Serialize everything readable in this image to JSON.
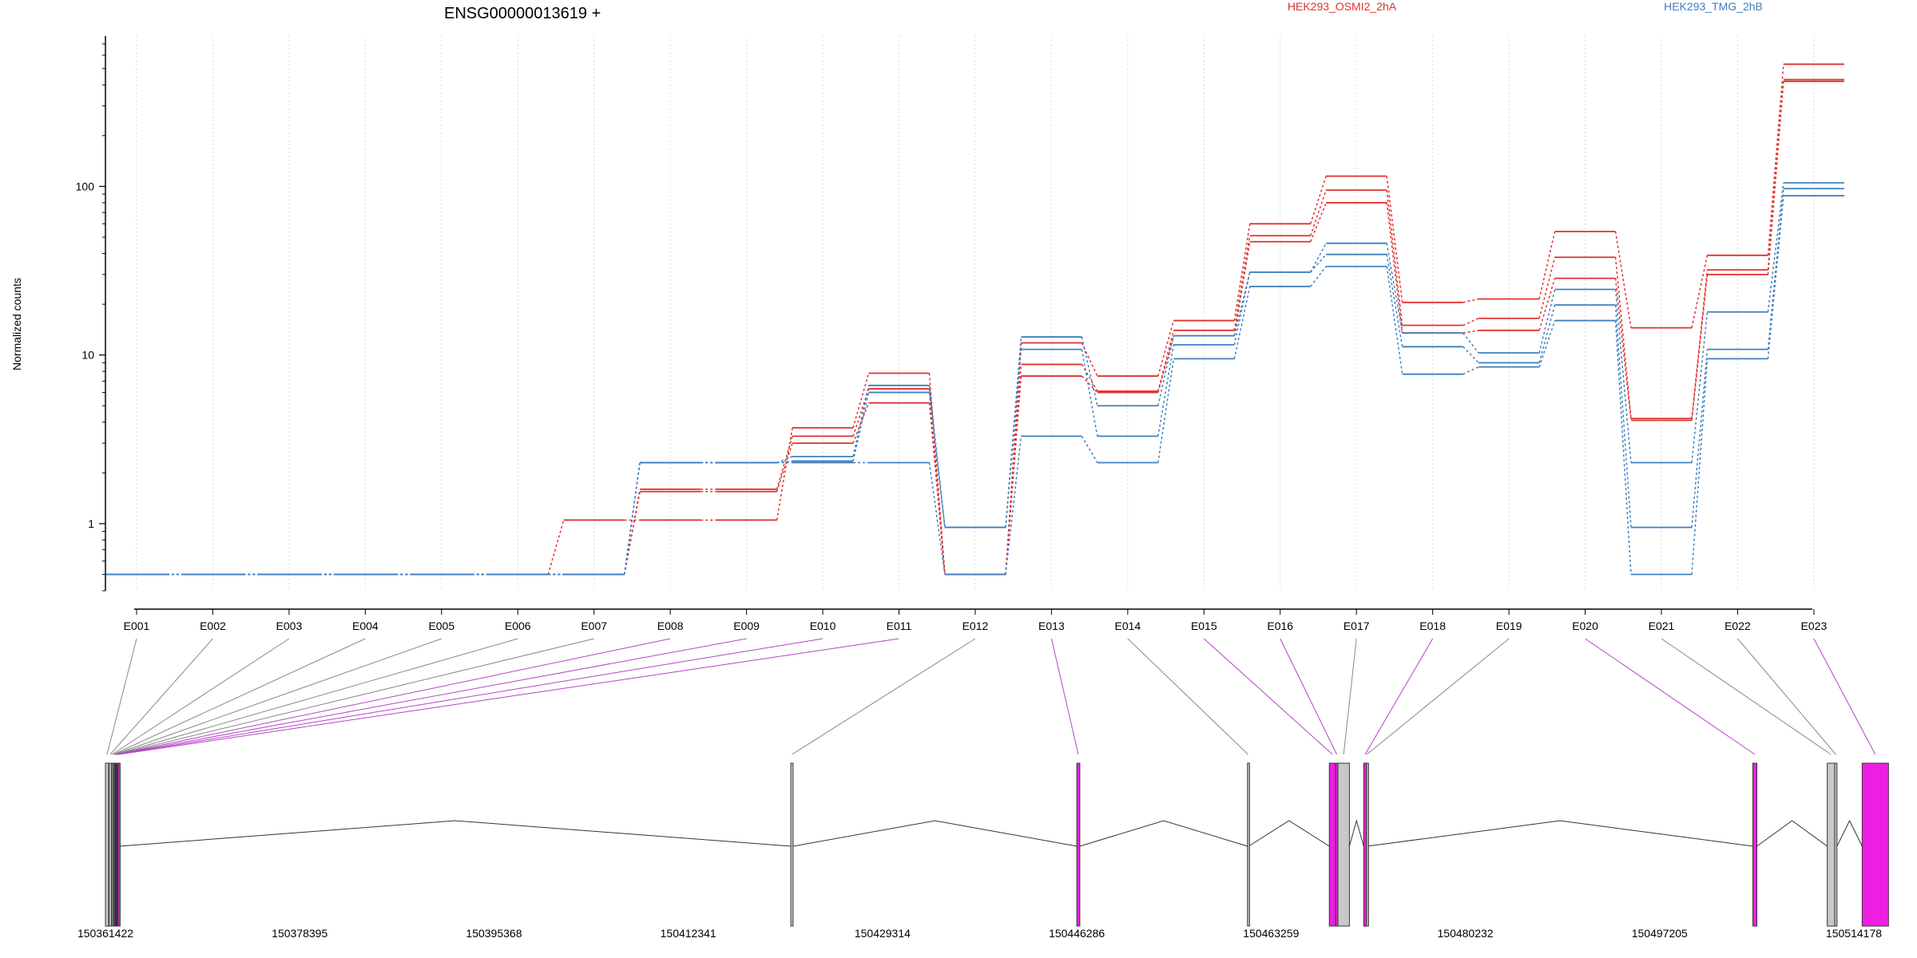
{
  "chart_data": {
    "type": "line",
    "title": "ENSG00000013619 +",
    "ylabel": "Normalized counts",
    "xlabel": "",
    "y_scale": "log",
    "ylim": [
      0.4,
      780
    ],
    "y_ticks": [
      1,
      10,
      100
    ],
    "y_tick_labels": [
      "1",
      "10",
      "100"
    ],
    "grid": "vertical dotted at each exon",
    "legend_placement": "top",
    "exons": [
      "E001",
      "E002",
      "E003",
      "E004",
      "E005",
      "E006",
      "E007",
      "E008",
      "E009",
      "E010",
      "E011",
      "E012",
      "E013",
      "E014",
      "E015",
      "E016",
      "E017",
      "E018",
      "E019",
      "E020",
      "E021",
      "E022",
      "E023"
    ],
    "series": [
      {
        "name": "HEK293_OSMI2_2hA",
        "color": "#e0312e",
        "values": [
          0.5,
          0.5,
          0.5,
          0.5,
          0.5,
          0.5,
          1.05,
          1.05,
          1.05,
          3.7,
          7.8,
          0.5,
          11.8,
          7.5,
          16,
          60,
          115,
          20.5,
          21.5,
          54,
          14.5,
          39,
          530
        ]
      },
      {
        "color": "#e0312e",
        "values": [
          0.5,
          0.5,
          0.5,
          0.5,
          0.5,
          0.5,
          0.5,
          1.6,
          1.6,
          3.3,
          6.3,
          0.5,
          8.8,
          6.1,
          14,
          51,
          95,
          15,
          16.5,
          38,
          4.2,
          32,
          430
        ]
      },
      {
        "color": "#e0312e",
        "values": [
          0.5,
          0.5,
          0.5,
          0.5,
          0.5,
          0.5,
          0.5,
          1.55,
          1.55,
          3.0,
          5.2,
          0.5,
          7.5,
          6.0,
          13,
          47,
          80,
          13.5,
          14,
          28.5,
          4.1,
          30,
          420
        ]
      },
      {
        "name": "HEK293_TMG_2hB",
        "color": "#3f7fbe",
        "values": [
          0.5,
          0.5,
          0.5,
          0.5,
          0.5,
          0.5,
          0.5,
          2.3,
          2.3,
          2.5,
          6.6,
          0.95,
          12.8,
          5.0,
          13,
          31,
          46,
          13.5,
          10.3,
          24.5,
          2.3,
          18,
          105
        ]
      },
      {
        "color": "#3f7fbe",
        "values": [
          0.5,
          0.5,
          0.5,
          0.5,
          0.5,
          0.5,
          0.5,
          2.3,
          2.3,
          2.35,
          6.0,
          0.95,
          10.8,
          3.3,
          11.5,
          31,
          39.5,
          11.2,
          9.0,
          19.8,
          0.95,
          10.8,
          97
        ]
      },
      {
        "color": "#3f7fbe",
        "values": [
          0.5,
          0.5,
          0.5,
          0.5,
          0.5,
          0.5,
          0.5,
          2.3,
          2.3,
          2.3,
          2.3,
          0.5,
          3.3,
          2.3,
          9.5,
          25.5,
          33.5,
          7.7,
          8.5,
          16,
          0.5,
          9.5,
          88
        ]
      }
    ],
    "exon_highlight": [
      false,
      false,
      false,
      false,
      false,
      false,
      false,
      true,
      true,
      true,
      true,
      false,
      true,
      false,
      true,
      true,
      false,
      true,
      false,
      true,
      false,
      false,
      true
    ],
    "genome_ticks": [
      "150361422",
      "150378395",
      "150395368",
      "150412341",
      "150429314",
      "150446286",
      "150463259",
      "150480232",
      "150497205",
      "150514178"
    ],
    "genome_start": 150361422,
    "genome_end": 150514178,
    "exon_genomic": [
      [
        150361422,
        150361700
      ],
      [
        150361740,
        150361940
      ],
      [
        150361960,
        150362060
      ],
      [
        150362080,
        150362160
      ],
      [
        150362180,
        150362220
      ],
      [
        150362240,
        150362270
      ],
      [
        150362290,
        150362310
      ],
      [
        150362330,
        150362380
      ],
      [
        150362390,
        150362450
      ],
      [
        150362460,
        150362520
      ],
      [
        150362530,
        150362620
      ],
      [
        150421300,
        150421500
      ],
      [
        150446286,
        150446550
      ],
      [
        150461200,
        150461300
      ],
      [
        150468350,
        150468900
      ],
      [
        150468900,
        150469100
      ],
      [
        150469100,
        150470100
      ],
      [
        150471350,
        150471600
      ],
      [
        150471600,
        150471650
      ],
      [
        150505350,
        150505700
      ],
      [
        150511850,
        150512500
      ],
      [
        150512500,
        150512700
      ],
      [
        150514900,
        150517200
      ]
    ],
    "colors": {
      "highlight": "#ee1fe3",
      "plain_exon": "#c8c8c8",
      "connector": "#888888",
      "connector_highlight": "#b146c2"
    }
  }
}
